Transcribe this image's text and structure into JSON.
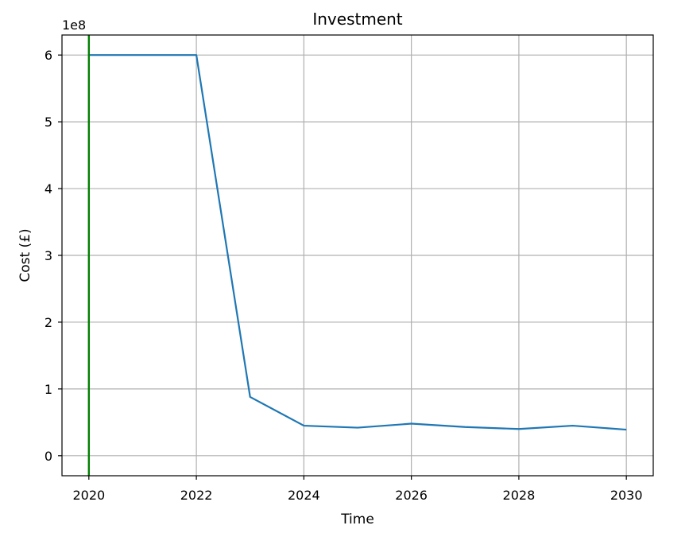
{
  "chart_data": {
    "type": "line",
    "title": "Investment",
    "xlabel": "Time",
    "ylabel": "Cost (£)",
    "y_offset_label": "1e8",
    "y_multiplier": 100000000,
    "xlim": [
      2019.5,
      2030.5
    ],
    "ylim": [
      -0.3,
      6.3
    ],
    "x_ticks": [
      2020,
      2022,
      2024,
      2026,
      2028,
      2030
    ],
    "y_ticks": [
      0,
      1,
      2,
      3,
      4,
      5,
      6
    ],
    "grid": true,
    "series": [
      {
        "color": "#1f77b4",
        "x": [
          2020,
          2021,
          2022,
          2023,
          2024,
          2025,
          2026,
          2027,
          2028,
          2029,
          2030
        ],
        "y": [
          6.0,
          6.0,
          6.0,
          0.88,
          0.45,
          0.42,
          0.48,
          0.43,
          0.4,
          0.45,
          0.39
        ]
      }
    ],
    "vertical_line": {
      "x": 2020,
      "color": "#008000"
    }
  }
}
